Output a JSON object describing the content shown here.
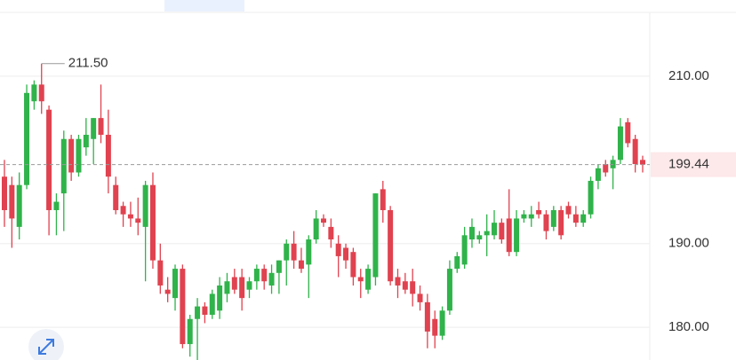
{
  "chart_data": {
    "type": "candlestick",
    "up_color": "#2fb34a",
    "down_color": "#e0424f",
    "open": [
      198,
      197,
      192,
      197,
      207,
      209,
      206,
      194,
      196,
      202.5,
      198.5,
      201.5,
      202.5,
      205,
      203,
      197,
      194.5,
      193.5,
      193,
      192,
      197,
      188,
      184.5,
      183.5,
      187,
      178,
      181,
      182.5,
      181.5,
      182,
      184,
      186,
      186,
      184.5,
      185.5,
      187,
      185,
      186.5,
      188,
      190,
      188,
      187.5,
      190.5,
      193,
      192,
      190,
      189.5,
      189,
      186,
      184.5,
      186,
      196.5,
      194,
      186,
      185.5,
      185.5,
      184,
      183,
      181,
      179,
      182,
      187,
      187.5,
      190.5,
      190.5,
      191,
      191,
      192.5,
      193,
      189,
      193,
      193,
      194,
      193.5,
      192,
      194,
      194.5,
      193.5,
      192.5,
      193.5,
      197.5,
      199.5,
      199,
      200,
      204.5,
      202.5,
      200
    ],
    "high": [
      200,
      198,
      198.5,
      209,
      209.5,
      211.5,
      206.5,
      196,
      203.5,
      203,
      203,
      205,
      205,
      209,
      206,
      198,
      195,
      195,
      195.5,
      197.5,
      198.5,
      190,
      186,
      187.5,
      187.5,
      181.5,
      183.5,
      183,
      184.5,
      186,
      186.5,
      187,
      187,
      186,
      187.5,
      187.5,
      187.5,
      188,
      190.5,
      191.5,
      189.5,
      191,
      194,
      193.5,
      193,
      191,
      190,
      189.5,
      187,
      187.5,
      196,
      197.5,
      194.5,
      187,
      186.5,
      187,
      185,
      184,
      182,
      182.5,
      188,
      189,
      192,
      193,
      191.5,
      193.5,
      194,
      193,
      196.5,
      194,
      194,
      194.5,
      195,
      194,
      194.5,
      194.5,
      195,
      194.5,
      194,
      198,
      199.5,
      200,
      200.5,
      205,
      205,
      203,
      200.5
    ],
    "low": [
      192,
      189.5,
      190.5,
      196.5,
      206,
      205.5,
      191,
      191,
      191.5,
      197.5,
      198,
      200.5,
      199.5,
      202,
      196,
      193.5,
      192,
      192,
      191,
      185.5,
      187,
      184,
      183,
      182,
      177.5,
      176.5,
      176,
      180.5,
      181,
      181,
      183,
      184,
      182,
      183.5,
      184.5,
      184.5,
      184,
      184,
      185,
      187,
      186.5,
      183.5,
      190,
      192,
      189.5,
      186,
      187,
      185,
      183.5,
      184,
      185,
      192.5,
      185,
      183.5,
      184,
      182.5,
      182,
      177.5,
      177.5,
      178.5,
      181.5,
      186.5,
      187,
      189.5,
      190,
      188.5,
      190.5,
      190,
      188.5,
      188.5,
      192.5,
      192,
      193,
      190.5,
      191.5,
      190.5,
      193,
      192,
      192,
      193,
      196.5,
      198,
      196.5,
      199.5,
      201.5,
      198.5,
      198.5
    ],
    "close": [
      194,
      193,
      197,
      208,
      209,
      207,
      194,
      195,
      202.5,
      198.5,
      202.5,
      203,
      205,
      203,
      198,
      194,
      193.5,
      193,
      192.5,
      197,
      188,
      185,
      184,
      187,
      178,
      181,
      182.5,
      181.5,
      184,
      185,
      185.5,
      184.5,
      183.5,
      185.5,
      187,
      185.5,
      186.5,
      188,
      190,
      188,
      187,
      190.5,
      193,
      192.5,
      190.5,
      188.5,
      188,
      186,
      185.5,
      187,
      196,
      194,
      185.5,
      185,
      184.5,
      184,
      183,
      179.5,
      179,
      182,
      187,
      188.5,
      191,
      192,
      191,
      191.5,
      192.5,
      190.5,
      189,
      193,
      193.5,
      193.5,
      193.5,
      191.5,
      194,
      191,
      193.5,
      192.5,
      193.5,
      197.5,
      199,
      198.5,
      200,
      204,
      202,
      199.5,
      199.44
    ],
    "last_price": 199.44,
    "max_annotation": {
      "value": 211.5,
      "label": "211.50"
    },
    "ylim": [
      176.1,
      219.1
    ],
    "yticks": [
      {
        "value": 180,
        "label": "180.00"
      },
      {
        "value": 190,
        "label": "190.00"
      },
      {
        "value": 210,
        "label": "210.00"
      }
    ],
    "grid": true
  }
}
